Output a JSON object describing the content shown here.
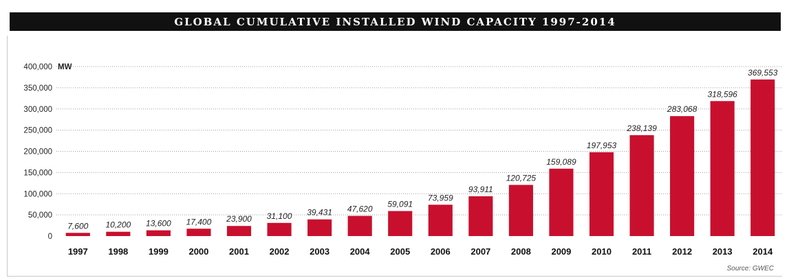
{
  "title": "GLOBAL CUMULATIVE INSTALLED WIND CAPACITY 1997-2014",
  "source": "Source: GWEC",
  "colors": {
    "bar": "#c8102e",
    "title_bg": "#111111",
    "grid": "#9a9a9a"
  },
  "chart_data": {
    "type": "bar",
    "title": "GLOBAL CUMULATIVE INSTALLED WIND CAPACITY 1997-2014",
    "ylabel": "MW",
    "xlabel": "",
    "ylim": [
      0,
      400000
    ],
    "yticks": [
      0,
      50000,
      100000,
      150000,
      200000,
      250000,
      300000,
      350000,
      400000
    ],
    "ytick_labels": [
      "0",
      "50,000",
      "100,000",
      "150,000",
      "200,000",
      "250,000",
      "300,000",
      "350,000",
      "400,000"
    ],
    "grid": true,
    "categories": [
      "1997",
      "1998",
      "1999",
      "2000",
      "2001",
      "2002",
      "2003",
      "2004",
      "2005",
      "2006",
      "2007",
      "2008",
      "2009",
      "2010",
      "2011",
      "2012",
      "2013",
      "2014"
    ],
    "values": [
      7600,
      10200,
      13600,
      17400,
      23900,
      31100,
      39431,
      47620,
      59091,
      73959,
      93911,
      120725,
      159089,
      197953,
      238139,
      283068,
      318596,
      369553
    ],
    "value_labels": [
      "7,600",
      "10,200",
      "13,600",
      "17,400",
      "23,900",
      "31,100",
      "39,431",
      "47,620",
      "59,091",
      "73,959",
      "93,911",
      "120,725",
      "159,089",
      "197,953",
      "238,139",
      "283,068",
      "318,596",
      "369,553"
    ]
  }
}
